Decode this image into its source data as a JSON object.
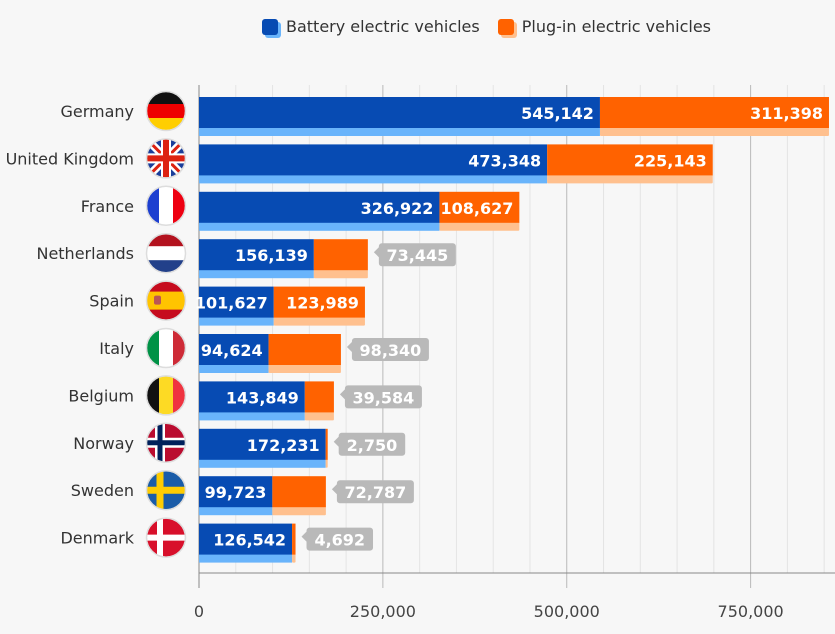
{
  "chart_data": {
    "type": "bar",
    "orientation": "horizontal",
    "stacked": true,
    "categories": [
      "Germany",
      "United Kingdom",
      "France",
      "Netherlands",
      "Spain",
      "Italy",
      "Belgium",
      "Norway",
      "Sweden",
      "Denmark"
    ],
    "series": [
      {
        "name": "Battery electric vehicles",
        "color": "#074bb3",
        "values": [
          545142,
          473348,
          326922,
          156139,
          101627,
          94624,
          143849,
          172231,
          99723,
          126542
        ]
      },
      {
        "name": "Plug-in electric vehicles",
        "color": "#ff6200",
        "values": [
          311398,
          225143,
          108627,
          73445,
          123989,
          98340,
          39584,
          2750,
          72787,
          4692
        ]
      }
    ],
    "xlim": [
      0,
      862000
    ],
    "xticks": [
      0,
      250000,
      500000,
      750000
    ],
    "xtick_labels": [
      "0",
      "250,000",
      "500,000",
      "750,000"
    ],
    "grid": "vertical minor every 50,000",
    "legend": "top",
    "flag_icons": [
      "germany-flag",
      "uk-flag",
      "france-flag",
      "netherlands-flag",
      "spain-flag",
      "italy-flag",
      "belgium-flag",
      "norway-flag",
      "sweden-flag",
      "denmark-flag"
    ]
  }
}
